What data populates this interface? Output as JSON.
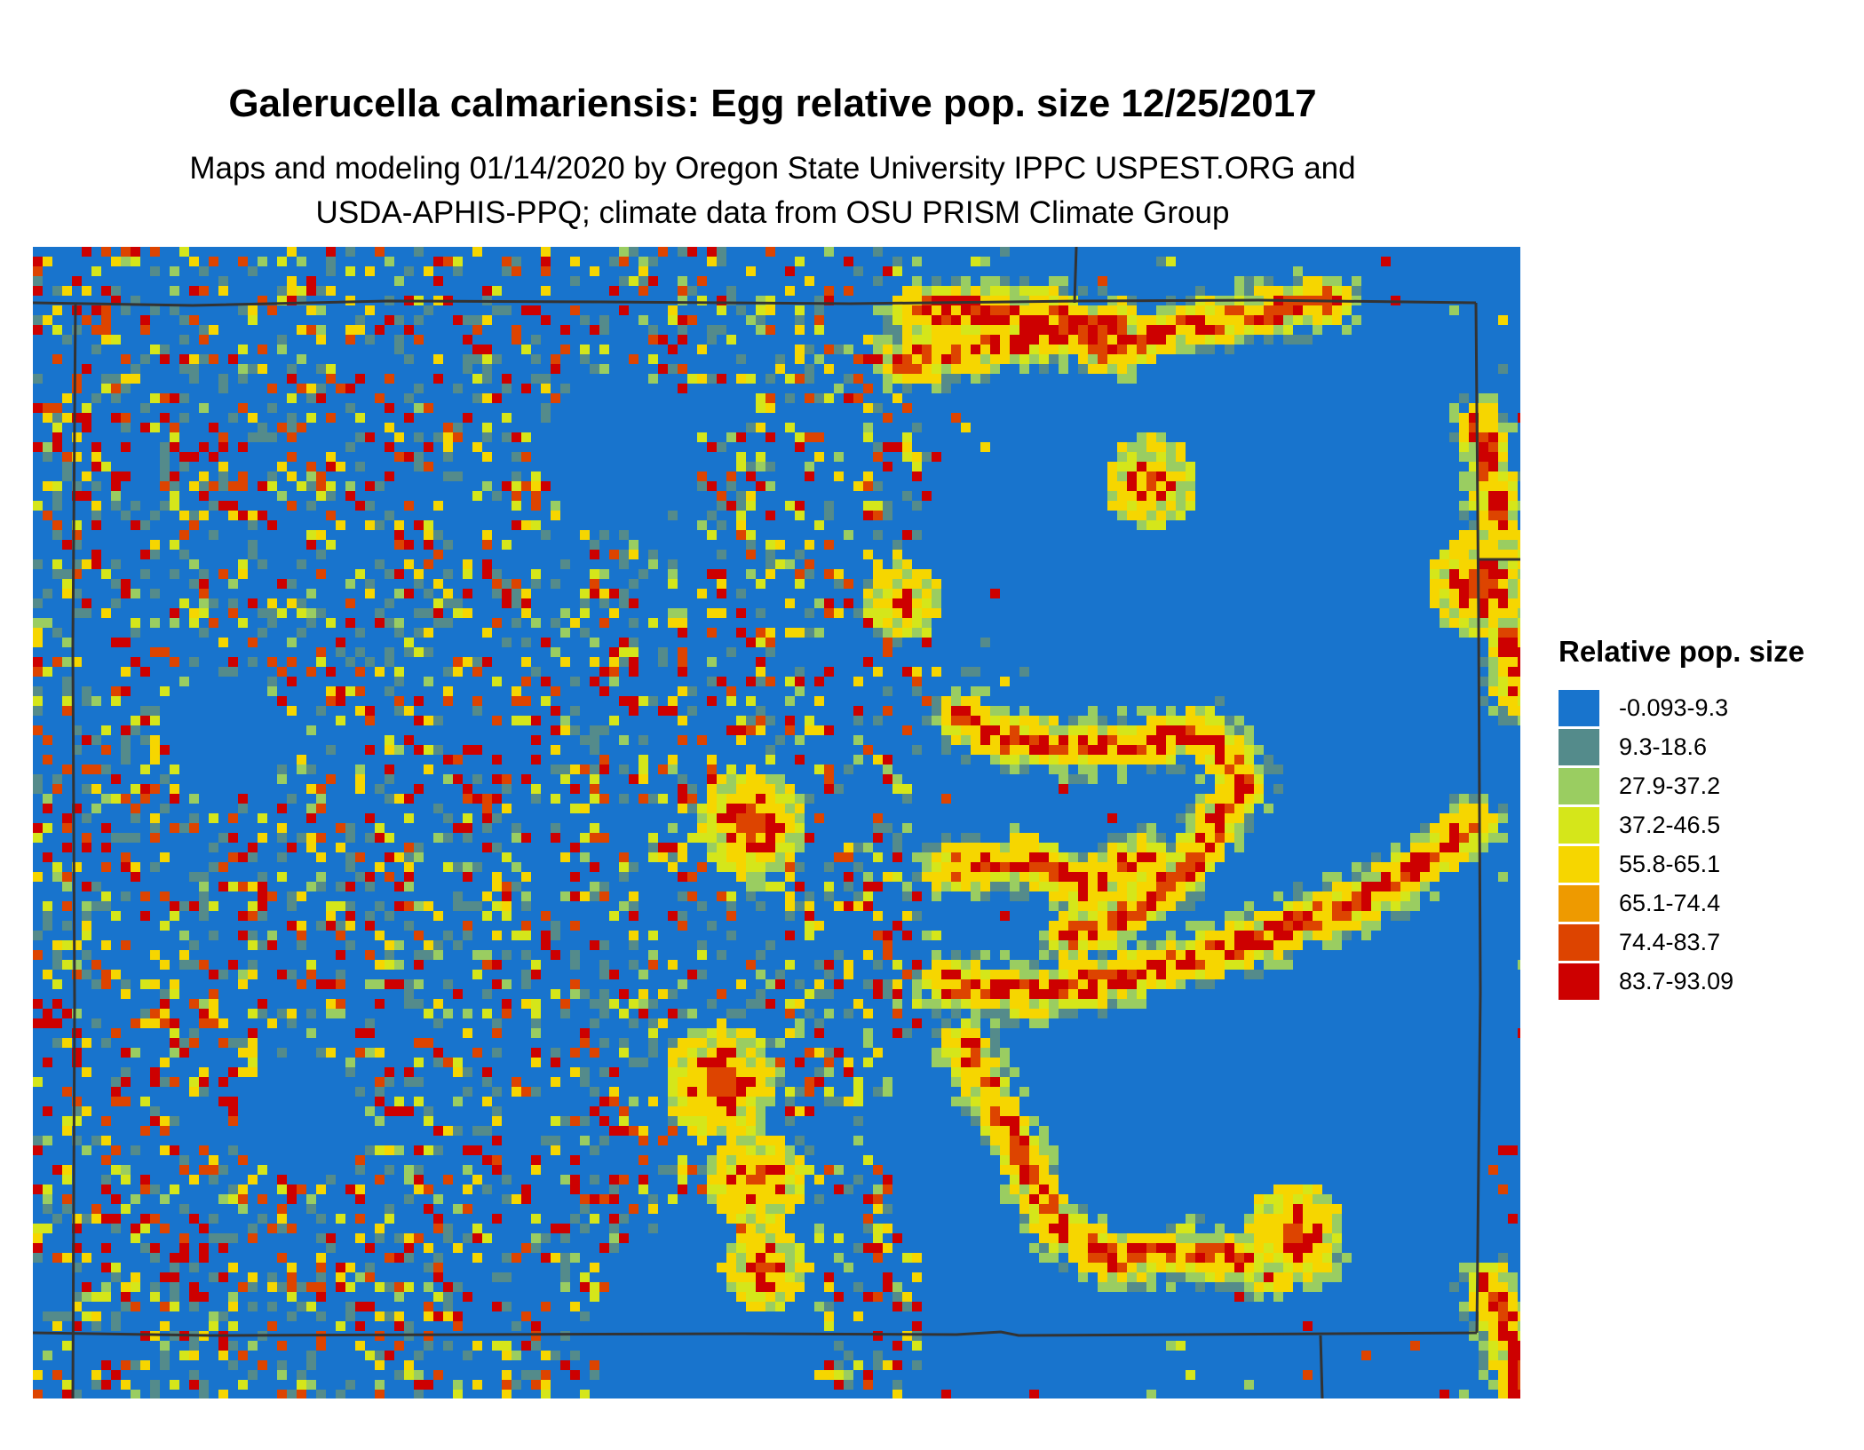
{
  "title": "Galerucella calmariensis: Egg relative pop. size 12/25/2017",
  "subtitle_line1": "Maps and modeling 01/14/2020 by Oregon State University IPPC USPEST.ORG and",
  "subtitle_line2": "USDA-APHIS-PPQ; climate data from OSU PRISM Climate Group",
  "legend": {
    "title": "Relative pop. size",
    "items": [
      {
        "label": "-0.093-9.3",
        "color": "#1874cd"
      },
      {
        "label": "9.3-18.6",
        "color": "#548b8b"
      },
      {
        "label": "27.9-37.2",
        "color": "#9acd61"
      },
      {
        "label": "37.2-46.5",
        "color": "#d5e61a"
      },
      {
        "label": "55.8-65.1",
        "color": "#f6d600"
      },
      {
        "label": "65.1-74.4",
        "color": "#ee9a00"
      },
      {
        "label": "74.4-83.7",
        "color": "#dd4400"
      },
      {
        "label": "83.7-93.09",
        "color": "#cd0000"
      }
    ]
  }
}
